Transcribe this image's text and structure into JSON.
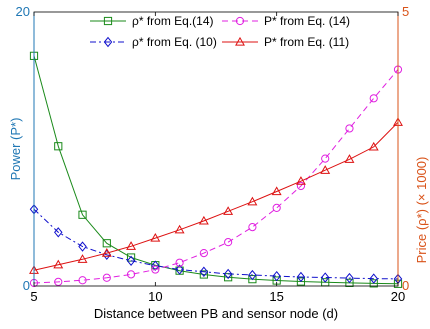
{
  "chart_data": {
    "type": "line",
    "xlabel": "Distance between PB and sensor node (d)",
    "ylabel_left": "Power (P*)",
    "ylabel_right": "Price (ρ*) (× 1000)",
    "xlim": [
      5,
      20
    ],
    "ylim_left": [
      0,
      20
    ],
    "ylim_right": [
      0,
      5
    ],
    "x_ticks": [
      "5",
      "10",
      "15",
      "20"
    ],
    "left_ticks": [
      "0",
      "20"
    ],
    "right_ticks": [
      "0",
      "5"
    ],
    "colors": {
      "left_axis": "#1f77b4",
      "right_axis": "#d95319"
    },
    "x": [
      5,
      6,
      7,
      8,
      9,
      10,
      11,
      12,
      13,
      14,
      15,
      16,
      17,
      18,
      19,
      20
    ],
    "series": [
      {
        "name": "ρ* from Eq.(14)",
        "axis": "right",
        "color": "#1a8a1a",
        "dash": "",
        "marker": "square",
        "values": [
          4.2,
          2.55,
          1.3,
          0.78,
          0.52,
          0.38,
          0.28,
          0.21,
          0.16,
          0.125,
          0.1,
          0.082,
          0.068,
          0.057,
          0.048,
          0.04
        ]
      },
      {
        "name": "ρ* from Eq. (10)",
        "axis": "right",
        "color": "#1010cc",
        "dash": "6,3,2,3",
        "marker": "diamond",
        "values": [
          1.4,
          0.98,
          0.72,
          0.57,
          0.46,
          0.37,
          0.3,
          0.26,
          0.22,
          0.2,
          0.18,
          0.165,
          0.155,
          0.145,
          0.135,
          0.13
        ]
      },
      {
        "name": "P* from Eq. (14)",
        "axis": "left",
        "color": "#e020e0",
        "dash": "6,4",
        "marker": "circle",
        "values": [
          0.22,
          0.3,
          0.42,
          0.6,
          0.85,
          1.2,
          1.7,
          2.4,
          3.2,
          4.3,
          5.7,
          7.3,
          9.3,
          11.5,
          13.7,
          15.8
        ]
      },
      {
        "name": "P* from Eq. (11)",
        "axis": "left",
        "color": "#dd1111",
        "dash": "",
        "marker": "triangle",
        "values": [
          1.15,
          1.55,
          1.95,
          2.4,
          2.9,
          3.5,
          4.1,
          4.75,
          5.45,
          6.15,
          6.9,
          7.65,
          8.45,
          9.25,
          10.15,
          11.95
        ]
      }
    ],
    "legend_placement": "top-center"
  }
}
